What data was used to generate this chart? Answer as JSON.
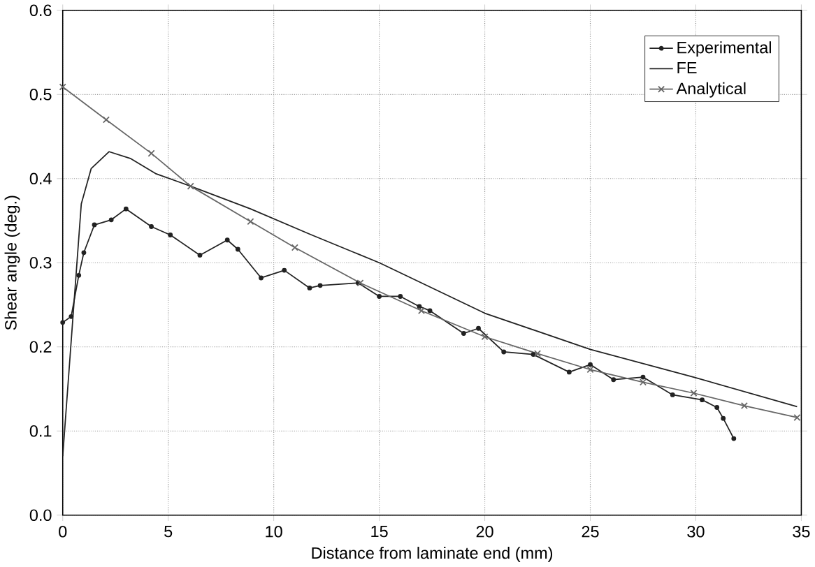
{
  "chart_data": {
    "type": "line",
    "xlabel": "Distance from laminate end (mm)",
    "ylabel": "Shear angle (deg.)",
    "xlim": [
      0,
      35
    ],
    "ylim": [
      0,
      0.6
    ],
    "xticks": [
      0,
      5,
      10,
      15,
      20,
      25,
      30,
      35
    ],
    "yticks": [
      {
        "value": 0,
        "label": "0.0"
      },
      {
        "value": 0.1,
        "label": "0.1"
      },
      {
        "value": 0.2,
        "label": "0.2"
      },
      {
        "value": 0.3,
        "label": "0.3"
      },
      {
        "value": 0.4,
        "label": "0.4"
      },
      {
        "value": 0.5,
        "label": "0.5"
      },
      {
        "value": 0.6,
        "label": "0.6"
      }
    ],
    "grid": true,
    "legend": "top right",
    "series": [
      {
        "name": "Experimental",
        "color": "#222222",
        "marker": "circle",
        "x": [
          0,
          0.4,
          0.76,
          1.0,
          1.5,
          2.3,
          3.0,
          4.2,
          5.1,
          6.5,
          7.8,
          8.3,
          9.4,
          10.5,
          11.7,
          12.2,
          14.0,
          15.0,
          16.0,
          16.9,
          17.4,
          19.0,
          19.7,
          20.9,
          22.3,
          24.0,
          25.0,
          26.1,
          27.5,
          28.9,
          30.3,
          31.0,
          31.3,
          31.8
        ],
        "values": [
          0.229,
          0.236,
          0.285,
          0.312,
          0.345,
          0.351,
          0.364,
          0.343,
          0.333,
          0.309,
          0.327,
          0.316,
          0.282,
          0.291,
          0.27,
          0.273,
          0.276,
          0.26,
          0.26,
          0.248,
          0.243,
          0.216,
          0.222,
          0.194,
          0.191,
          0.17,
          0.179,
          0.161,
          0.164,
          0.143,
          0.137,
          0.128,
          0.115,
          0.091
        ]
      },
      {
        "name": "FE",
        "color": "#222222",
        "marker": "none",
        "x": [
          0,
          0.88,
          1.35,
          2.2,
          3.2,
          4.4,
          6.06,
          8.9,
          11.7,
          15.0,
          20.0,
          25.0,
          29.9,
          34.8
        ],
        "values": [
          0.07,
          0.37,
          0.412,
          0.432,
          0.424,
          0.406,
          0.391,
          0.364,
          0.334,
          0.3,
          0.24,
          0.197,
          0.164,
          0.129
        ]
      },
      {
        "name": "Analytical",
        "color": "#666666",
        "marker": "cross",
        "x": [
          0,
          2.06,
          4.2,
          6.06,
          8.9,
          11.0,
          14.1,
          17.0,
          20.0,
          22.5,
          25.0,
          27.5,
          29.9,
          32.3,
          34.8
        ],
        "values": [
          0.509,
          0.47,
          0.43,
          0.391,
          0.349,
          0.318,
          0.276,
          0.243,
          0.212,
          0.192,
          0.173,
          0.158,
          0.145,
          0.13,
          0.116
        ]
      }
    ]
  }
}
